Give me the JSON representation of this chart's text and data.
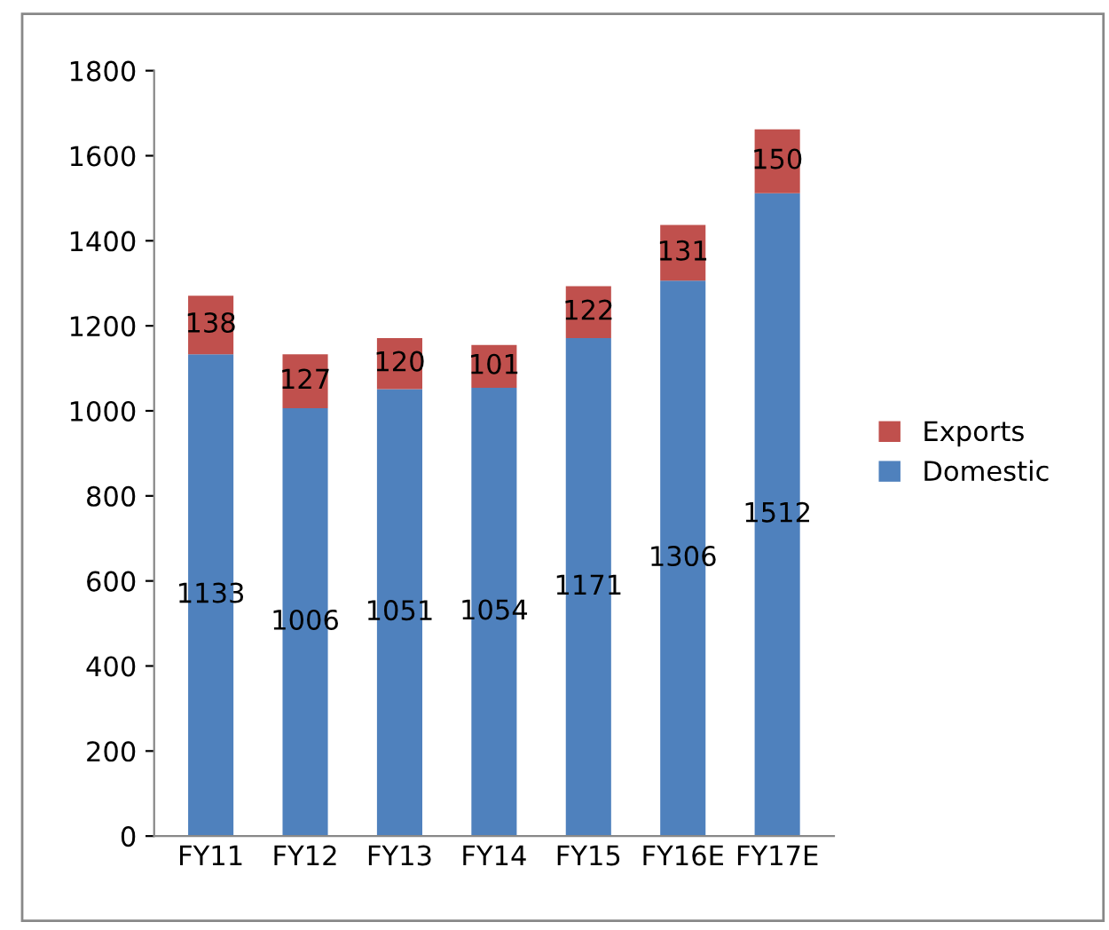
{
  "chart_data": {
    "type": "bar",
    "stacked": true,
    "categories": [
      "FY11",
      "FY12",
      "FY13",
      "FY14",
      "FY15",
      "FY16E",
      "FY17E"
    ],
    "series": [
      {
        "name": "Domestic",
        "color": "#4f81bd",
        "values": [
          1133,
          1006,
          1051,
          1054,
          1171,
          1306,
          1512
        ]
      },
      {
        "name": "Exports",
        "color": "#c0504d",
        "values": [
          138,
          127,
          120,
          101,
          122,
          131,
          150
        ]
      }
    ],
    "ylim": [
      0,
      1800
    ],
    "yticks": [
      0,
      200,
      400,
      600,
      800,
      1000,
      1200,
      1400,
      1600,
      1800
    ],
    "grid": false,
    "legend": "right",
    "data_labels": true
  }
}
